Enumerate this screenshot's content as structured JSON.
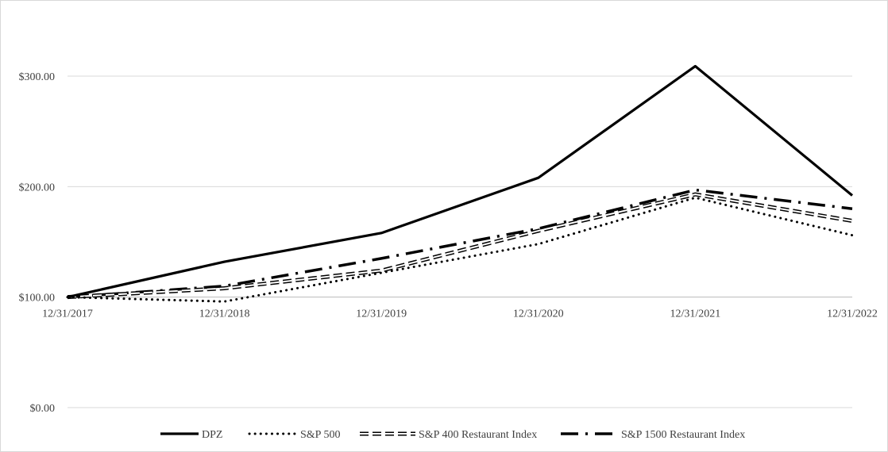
{
  "chart_data": {
    "type": "line",
    "title": "",
    "xlabel": "",
    "ylabel": "",
    "categories": [
      "12/31/2017",
      "12/31/2018",
      "12/31/2019",
      "12/31/2020",
      "12/31/2021",
      "12/31/2022"
    ],
    "y_ticks": [
      "$0.00",
      "$100.00",
      "$200.00",
      "$300.00"
    ],
    "y_tick_values": [
      0,
      100,
      200,
      300
    ],
    "ylim": [
      0,
      350
    ],
    "x_axis_crosses_at": 100,
    "grid": true,
    "legend_position": "bottom",
    "series": [
      {
        "name": "DPZ",
        "style": "solid",
        "color": "#000000",
        "values": [
          100,
          132,
          158,
          208,
          309,
          192
        ]
      },
      {
        "name": "S&P 500",
        "style": "dotted",
        "color": "#000000",
        "values": [
          100,
          96,
          122,
          148,
          190,
          156
        ]
      },
      {
        "name": "S&P 400 Restaurant Index",
        "style": "double-dash",
        "color": "#000000",
        "values": [
          100,
          108,
          124,
          160,
          193,
          169
        ]
      },
      {
        "name": "S&P 1500 Restaurant Index",
        "style": "dash-dot",
        "color": "#000000",
        "values": [
          100,
          110,
          135,
          162,
          197,
          180
        ]
      }
    ]
  }
}
